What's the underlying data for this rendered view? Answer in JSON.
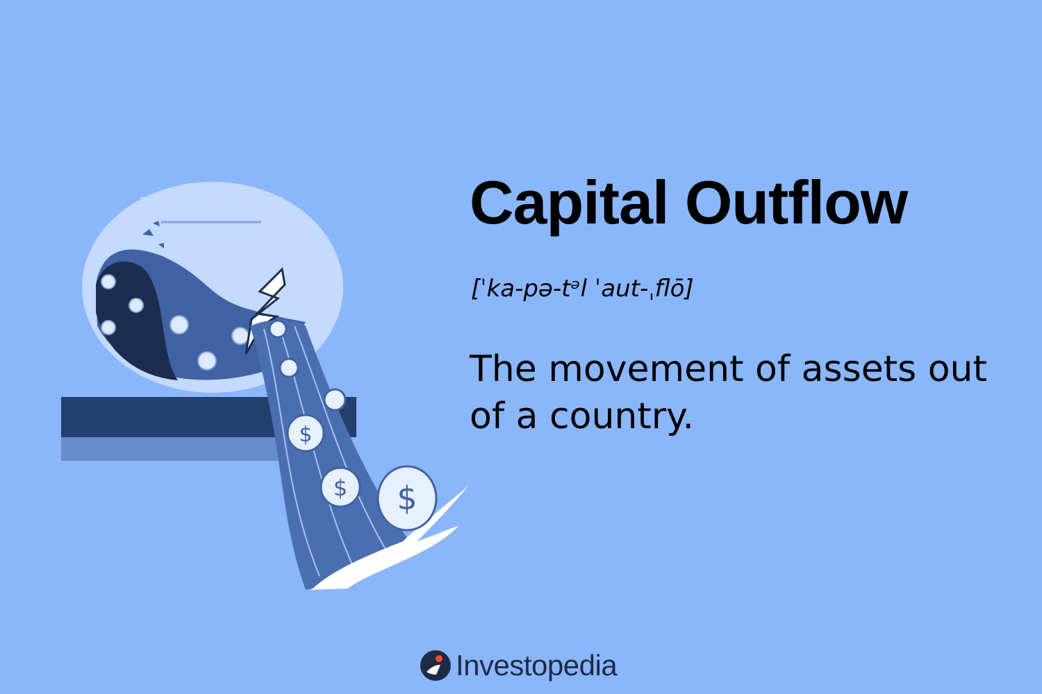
{
  "term": {
    "title": "Capital Outflow",
    "pronunciation": "[ˈka-pə-tᵊl ˈaut-ˌflō]",
    "definition": "The movement of assets out of a country."
  },
  "brand": {
    "name": "Investopedia",
    "logo_icon": "investopedia-logo-icon"
  },
  "illustration": {
    "description_icon": "cracked-jar-spilling-coins-icon",
    "colors": {
      "background": "#8ab6fb",
      "jar_glass": "#c4daff",
      "water": "#3f63a3",
      "water_dark": "#1c2d4f",
      "shelf": "#22406e",
      "stream": "#4a6fb0",
      "coin": "#e8f0ff"
    }
  }
}
